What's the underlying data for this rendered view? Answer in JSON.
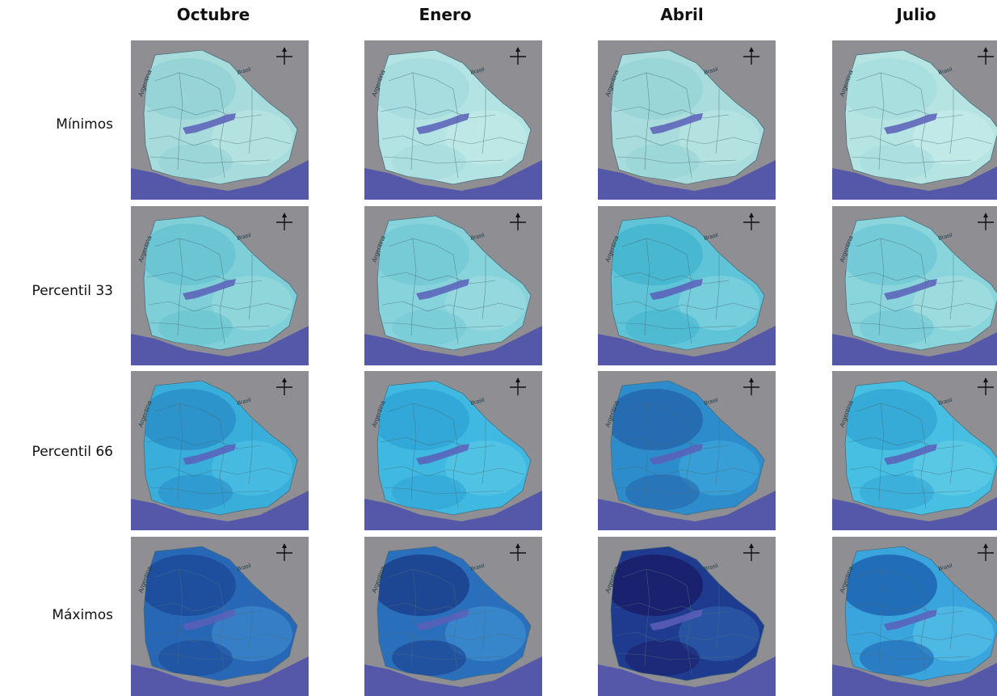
{
  "columns": [
    "Octubre",
    "Enero",
    "Abril",
    "Julio"
  ],
  "rows": [
    "Mínimos",
    "Percentil 33",
    "Percentil 66",
    "Máximos"
  ],
  "map_labels": {
    "country_left": "Argentina",
    "country_right": "Brasil"
  },
  "icons": {
    "north_arrow": "compass-rose-icon"
  },
  "colors": {
    "background": "#8f8f93",
    "sea": "#5557a8",
    "lake": "#5b5fb8",
    "boundary": "#4a6d7a"
  },
  "panels": [
    [
      {
        "base": "#a8dcdc",
        "blob1": "#94d2d6",
        "blob2": "#b7e4e2"
      },
      {
        "base": "#b3e3e2",
        "blob1": "#a5dcdd",
        "blob2": "#c0e8e6"
      },
      {
        "base": "#a9dcdc",
        "blob1": "#98d3d6",
        "blob2": "#b6e3e2"
      },
      {
        "base": "#b5e4e3",
        "blob1": "#a7dedd",
        "blob2": "#c3eae8"
      }
    ],
    [
      {
        "base": "#7ecfd8",
        "blob1": "#67c3d1",
        "blob2": "#93d7dc"
      },
      {
        "base": "#86d3db",
        "blob1": "#74c9d6",
        "blob2": "#99dadf"
      },
      {
        "base": "#5fc4d7",
        "blob1": "#44b6d0",
        "blob2": "#7ccfdc"
      },
      {
        "base": "#8ad4db",
        "blob1": "#70c8d5",
        "blob2": "#a0dde0"
      }
    ],
    [
      {
        "base": "#39aedb",
        "blob1": "#2a8ec8",
        "blob2": "#4bbde2"
      },
      {
        "base": "#3fb9e2",
        "blob1": "#2fa4d6",
        "blob2": "#55c6e6"
      },
      {
        "base": "#2d8ccb",
        "blob1": "#2466ae",
        "blob2": "#3aa4d8"
      },
      {
        "base": "#47bfe2",
        "blob1": "#34a7d6",
        "blob2": "#5dcbe6"
      }
    ],
    [
      {
        "base": "#2867b5",
        "blob1": "#1c4b9a",
        "blob2": "#3a86cc"
      },
      {
        "base": "#2a6fbc",
        "blob1": "#1b3f8c",
        "blob2": "#3b8ccf"
      },
      {
        "base": "#1f3b8f",
        "blob1": "#1a1f6b",
        "blob2": "#2a5aa8"
      },
      {
        "base": "#3aa5dc",
        "blob1": "#1f63b0",
        "blob2": "#52bde6"
      }
    ]
  ]
}
